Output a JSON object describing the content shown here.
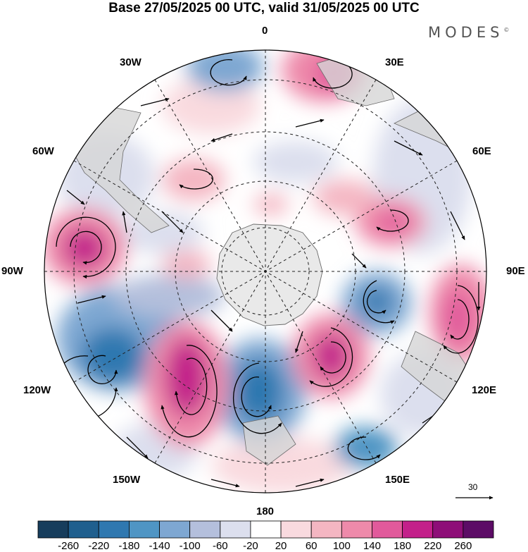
{
  "title": "Base 27/05/2025 00 UTC, valid 31/05/2025 00 UTC",
  "brand": {
    "name": "MODES",
    "mark": "©"
  },
  "map": {
    "projection": "south polar stereographic",
    "longitude_labels": {
      "lon_0": "0",
      "lon_30e": "30E",
      "lon_60e": "60E",
      "lon_90e": "90E",
      "lon_120e": "120E",
      "lon_150e": "150E",
      "lon_180": "180",
      "lon_150w": "150W",
      "lon_120w": "120W",
      "lon_90w": "90W",
      "lon_60w": "60W",
      "lon_30w": "30W"
    },
    "reference_vector": {
      "value": "30"
    }
  },
  "colorbar": {
    "ticks": [
      "-260",
      "-220",
      "-180",
      "-140",
      "-100",
      "-60",
      "-20",
      "20",
      "60",
      "100",
      "140",
      "180",
      "220",
      "260"
    ],
    "colors": [
      "#173d5c",
      "#1f5f8e",
      "#2f78b0",
      "#4f95c4",
      "#7ea7d2",
      "#b4bfdc",
      "#dcdfee",
      "#ffffff",
      "#f9dadf",
      "#f4b6c2",
      "#ee8aaa",
      "#e15a9b",
      "#c3208a",
      "#8e0e78",
      "#5c0c66"
    ]
  },
  "colors": {
    "land": "#d6d6d6",
    "antarctica": "#e9e9e9"
  }
}
